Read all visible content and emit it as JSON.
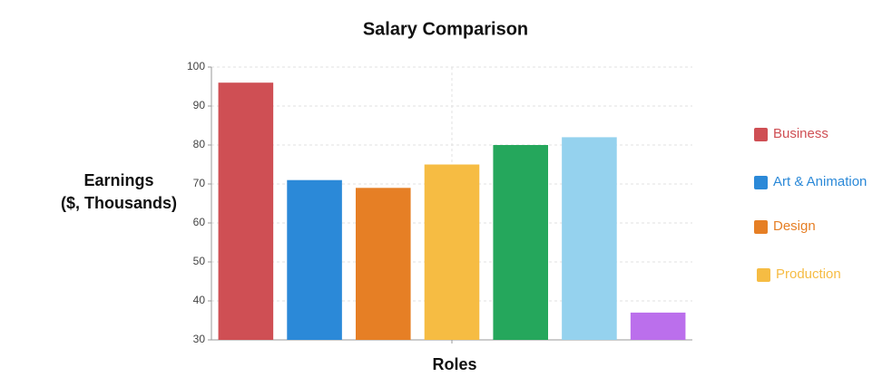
{
  "chart_data": {
    "type": "bar",
    "title": "Salary Comparison",
    "xlabel": "Roles",
    "ylabel": [
      "Earnings",
      "($, Thousands)"
    ],
    "categories": [
      null,
      null,
      null,
      null,
      null,
      null,
      null
    ],
    "values": [
      96,
      71,
      69,
      75,
      80,
      82,
      37
    ],
    "colors": [
      "#cf4f54",
      "#2b89d8",
      "#e67f25",
      "#f6bc43",
      "#25a75c",
      "#95d2ee",
      "#bb6fec"
    ],
    "ylim": [
      30,
      100
    ],
    "yticks": [
      30,
      40,
      50,
      60,
      70,
      80,
      90,
      100
    ],
    "grid": true,
    "legend": [
      {
        "name": "Business",
        "color": "#cf4f54"
      },
      {
        "name": "Art & Animation",
        "color": "#2b89d8"
      },
      {
        "name": "Design",
        "color": "#e67f25"
      },
      {
        "name": "Production",
        "color": "#f6bc43"
      }
    ],
    "legend_position": "right"
  }
}
